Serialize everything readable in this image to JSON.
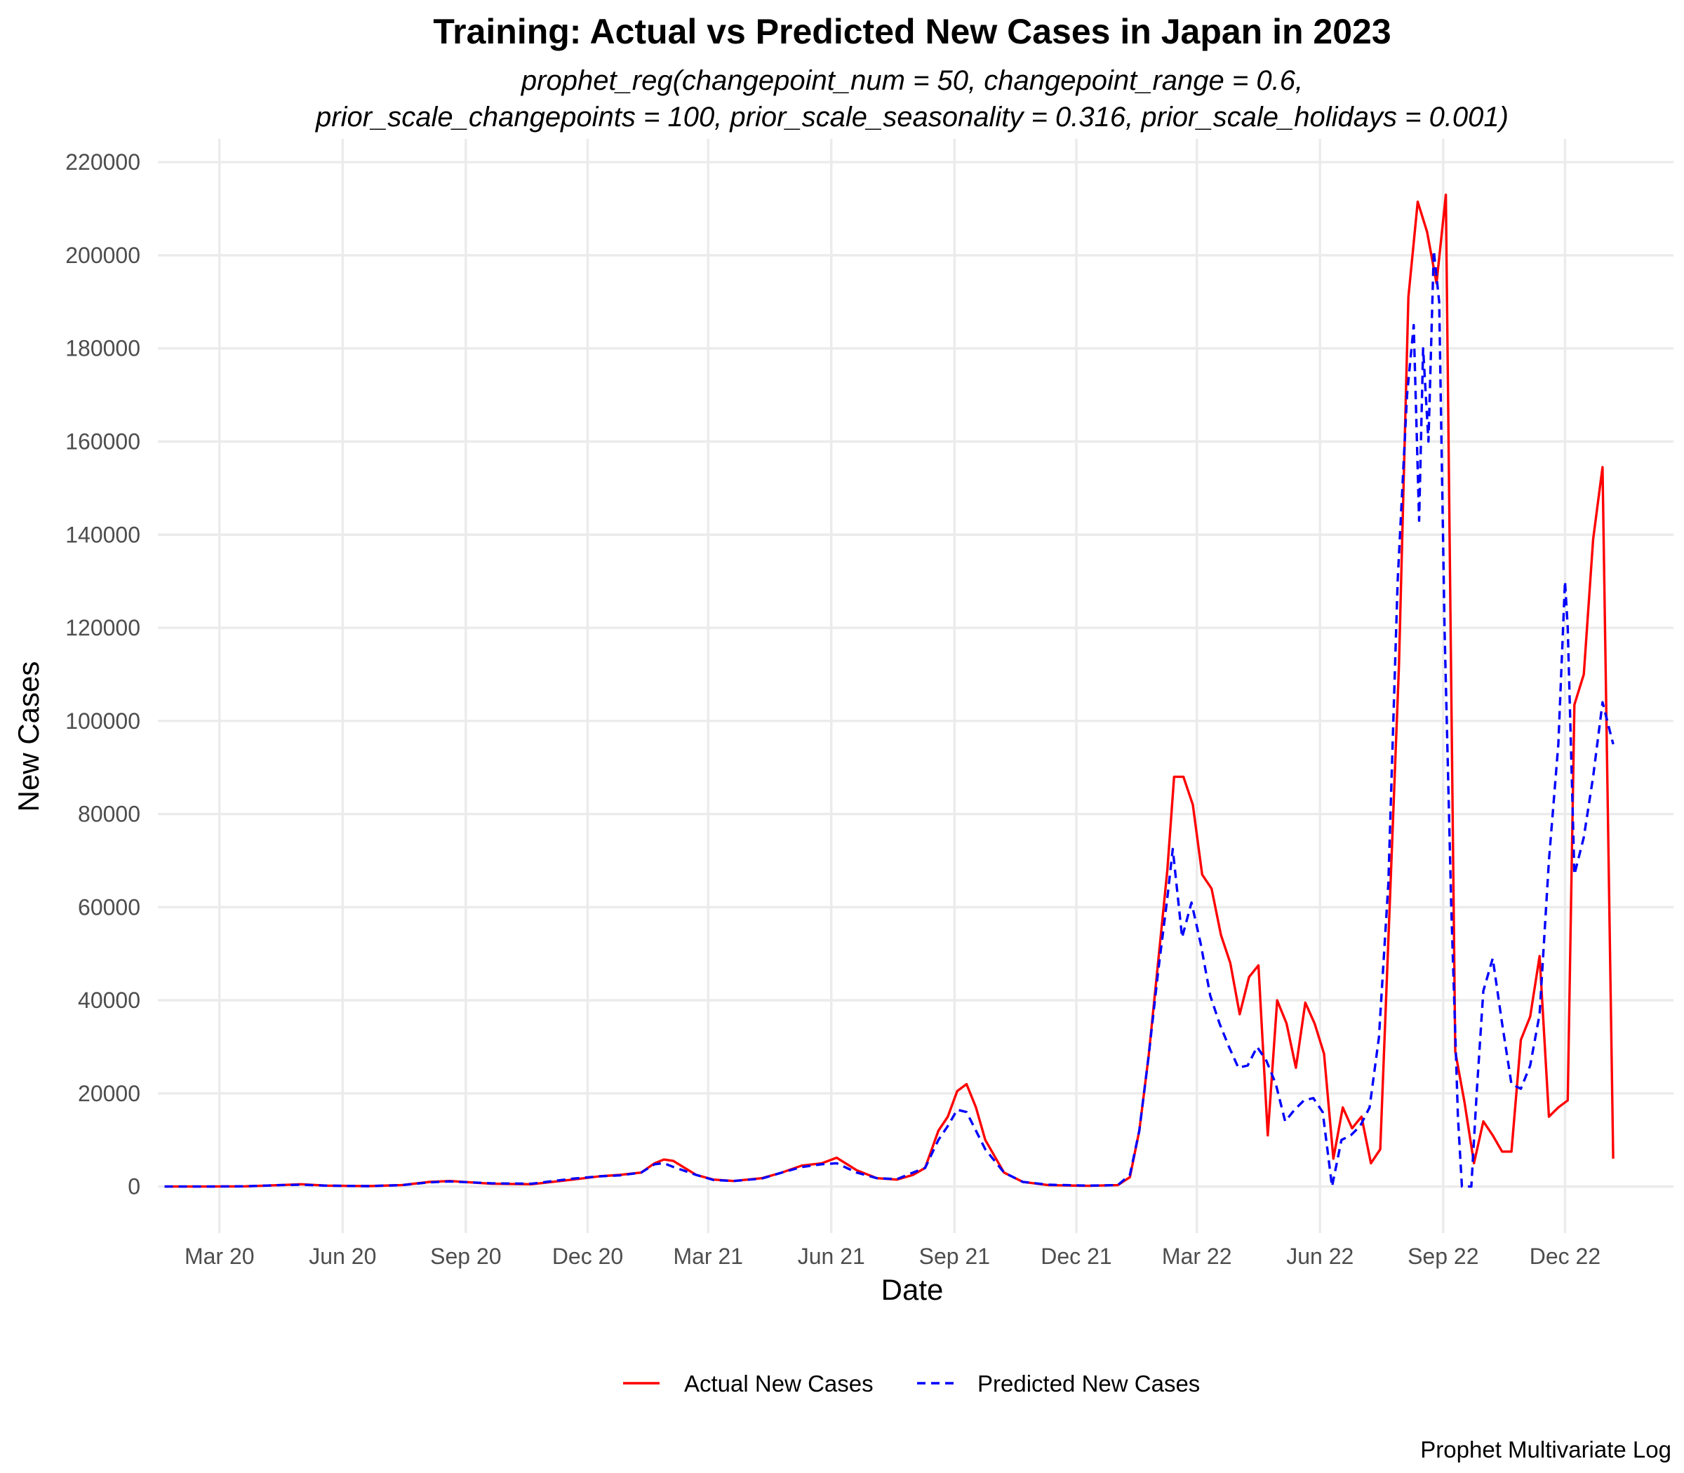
{
  "chart_data": {
    "type": "line",
    "title": "Training: Actual vs Predicted New Cases in Japan in 2023",
    "subtitle_lines": [
      "prophet_reg(changepoint_num = 50, changepoint_range = 0.6,",
      "prior_scale_changepoints = 100, prior_scale_seasonality = 0.316, prior_scale_holidays = 0.001)"
    ],
    "xlabel": "Date",
    "ylabel": "New Cases",
    "caption": "Prophet Multivariate Log",
    "x_ticks": [
      {
        "label": "Mar 20",
        "date": "2020-03-01"
      },
      {
        "label": "Jun 20",
        "date": "2020-06-01"
      },
      {
        "label": "Sep 20",
        "date": "2020-09-01"
      },
      {
        "label": "Dec 20",
        "date": "2020-12-01"
      },
      {
        "label": "Mar 21",
        "date": "2021-03-01"
      },
      {
        "label": "Jun 21",
        "date": "2021-06-01"
      },
      {
        "label": "Sep 21",
        "date": "2021-09-01"
      },
      {
        "label": "Dec 21",
        "date": "2021-12-01"
      },
      {
        "label": "Mar 22",
        "date": "2022-03-01"
      },
      {
        "label": "Jun 22",
        "date": "2022-06-01"
      },
      {
        "label": "Sep 22",
        "date": "2022-09-01"
      },
      {
        "label": "Dec 22",
        "date": "2022-12-01"
      }
    ],
    "y_ticks": [
      0,
      20000,
      40000,
      60000,
      80000,
      100000,
      120000,
      140000,
      160000,
      180000,
      200000,
      220000
    ],
    "ylim": [
      -10000,
      225000
    ],
    "xlim": [
      "2020-01-15",
      "2023-02-20"
    ],
    "grid": true,
    "legend_position": "bottom",
    "series": [
      {
        "name": "Actual New Cases",
        "color": "#ff0000",
        "dash": "solid",
        "points": [
          [
            "2020-01-20",
            0
          ],
          [
            "2020-02-20",
            0
          ],
          [
            "2020-03-20",
            50
          ],
          [
            "2020-04-15",
            300
          ],
          [
            "2020-05-01",
            500
          ],
          [
            "2020-05-20",
            200
          ],
          [
            "2020-06-20",
            100
          ],
          [
            "2020-07-15",
            300
          ],
          [
            "2020-08-05",
            1000
          ],
          [
            "2020-08-20",
            1200
          ],
          [
            "2020-09-20",
            600
          ],
          [
            "2020-10-20",
            500
          ],
          [
            "2020-11-20",
            1500
          ],
          [
            "2020-12-10",
            2200
          ],
          [
            "2020-12-25",
            2500
          ],
          [
            "2021-01-10",
            3000
          ],
          [
            "2021-01-20",
            5000
          ],
          [
            "2021-01-27",
            5800
          ],
          [
            "2021-02-03",
            5500
          ],
          [
            "2021-02-20",
            2500
          ],
          [
            "2021-03-05",
            1500
          ],
          [
            "2021-03-20",
            1200
          ],
          [
            "2021-04-10",
            1800
          ],
          [
            "2021-04-25",
            3000
          ],
          [
            "2021-05-10",
            4500
          ],
          [
            "2021-05-25",
            5000
          ],
          [
            "2021-06-05",
            6200
          ],
          [
            "2021-06-20",
            3500
          ],
          [
            "2021-07-05",
            1800
          ],
          [
            "2021-07-20",
            1500
          ],
          [
            "2021-08-01",
            2500
          ],
          [
            "2021-08-10",
            4000
          ],
          [
            "2021-08-20",
            12000
          ],
          [
            "2021-08-27",
            15000
          ],
          [
            "2021-09-03",
            20500
          ],
          [
            "2021-09-10",
            22000
          ],
          [
            "2021-09-17",
            17000
          ],
          [
            "2021-09-24",
            10000
          ],
          [
            "2021-10-08",
            3000
          ],
          [
            "2021-10-22",
            1000
          ],
          [
            "2021-11-10",
            300
          ],
          [
            "2021-12-10",
            150
          ],
          [
            "2022-01-01",
            300
          ],
          [
            "2022-01-10",
            2000
          ],
          [
            "2022-01-17",
            12000
          ],
          [
            "2022-01-24",
            28000
          ],
          [
            "2022-01-31",
            48000
          ],
          [
            "2022-02-07",
            68000
          ],
          [
            "2022-02-12",
            88000
          ],
          [
            "2022-02-19",
            88000
          ],
          [
            "2022-02-26",
            82000
          ],
          [
            "2022-03-05",
            67000
          ],
          [
            "2022-03-12",
            64000
          ],
          [
            "2022-03-19",
            54000
          ],
          [
            "2022-03-26",
            48000
          ],
          [
            "2022-04-02",
            37000
          ],
          [
            "2022-04-09",
            45000
          ],
          [
            "2022-04-16",
            47500
          ],
          [
            "2022-04-23",
            11000
          ],
          [
            "2022-04-30",
            40000
          ],
          [
            "2022-05-07",
            35000
          ],
          [
            "2022-05-14",
            25500
          ],
          [
            "2022-05-21",
            39500
          ],
          [
            "2022-05-28",
            35000
          ],
          [
            "2022-06-04",
            28500
          ],
          [
            "2022-06-11",
            6000
          ],
          [
            "2022-06-18",
            17000
          ],
          [
            "2022-06-25",
            12500
          ],
          [
            "2022-07-02",
            15000
          ],
          [
            "2022-07-09",
            5000
          ],
          [
            "2022-07-16",
            8000
          ],
          [
            "2022-07-23",
            60000
          ],
          [
            "2022-07-30",
            112000
          ],
          [
            "2022-08-06",
            191000
          ],
          [
            "2022-08-13",
            211500
          ],
          [
            "2022-08-20",
            205000
          ],
          [
            "2022-08-27",
            194000
          ],
          [
            "2022-09-03",
            213000
          ],
          [
            "2022-09-10",
            29000
          ],
          [
            "2022-09-17",
            18000
          ],
          [
            "2022-09-24",
            5000
          ],
          [
            "2022-10-01",
            14000
          ],
          [
            "2022-10-08",
            11000
          ],
          [
            "2022-10-15",
            7500
          ],
          [
            "2022-10-22",
            7500
          ],
          [
            "2022-10-29",
            31500
          ],
          [
            "2022-11-05",
            36500
          ],
          [
            "2022-11-12",
            49500
          ],
          [
            "2022-11-19",
            15000
          ],
          [
            "2022-11-26",
            17000
          ],
          [
            "2022-12-03",
            18500
          ],
          [
            "2022-12-08",
            103500
          ],
          [
            "2022-12-15",
            110000
          ],
          [
            "2022-12-22",
            139000
          ],
          [
            "2022-12-29",
            154500
          ],
          [
            "2023-01-06",
            6000
          ]
        ]
      },
      {
        "name": "Predicted New Cases",
        "color": "#0000ff",
        "dash": "dashed",
        "points": [
          [
            "2020-01-20",
            0
          ],
          [
            "2020-02-20",
            0
          ],
          [
            "2020-03-20",
            50
          ],
          [
            "2020-04-15",
            300
          ],
          [
            "2020-05-01",
            400
          ],
          [
            "2020-05-20",
            200
          ],
          [
            "2020-06-20",
            100
          ],
          [
            "2020-07-15",
            300
          ],
          [
            "2020-08-05",
            900
          ],
          [
            "2020-08-20",
            1100
          ],
          [
            "2020-09-20",
            700
          ],
          [
            "2020-10-20",
            600
          ],
          [
            "2020-11-20",
            1700
          ],
          [
            "2020-12-10",
            2200
          ],
          [
            "2020-12-25",
            2400
          ],
          [
            "2021-01-10",
            3000
          ],
          [
            "2021-01-20",
            4800
          ],
          [
            "2021-01-27",
            5000
          ],
          [
            "2021-02-03",
            4200
          ],
          [
            "2021-02-20",
            2500
          ],
          [
            "2021-03-05",
            1400
          ],
          [
            "2021-03-20",
            1200
          ],
          [
            "2021-04-10",
            1700
          ],
          [
            "2021-04-25",
            3000
          ],
          [
            "2021-05-10",
            4200
          ],
          [
            "2021-05-25",
            4800
          ],
          [
            "2021-06-05",
            5000
          ],
          [
            "2021-06-20",
            3000
          ],
          [
            "2021-07-05",
            1800
          ],
          [
            "2021-07-20",
            1600
          ],
          [
            "2021-08-01",
            3000
          ],
          [
            "2021-08-10",
            4000
          ],
          [
            "2021-08-20",
            10000
          ],
          [
            "2021-08-27",
            13000
          ],
          [
            "2021-09-03",
            16500
          ],
          [
            "2021-09-10",
            16000
          ],
          [
            "2021-09-17",
            12000
          ],
          [
            "2021-09-24",
            8000
          ],
          [
            "2021-10-08",
            3000
          ],
          [
            "2021-10-22",
            1000
          ],
          [
            "2021-11-10",
            400
          ],
          [
            "2021-12-10",
            200
          ],
          [
            "2022-01-01",
            300
          ],
          [
            "2022-01-10",
            2500
          ],
          [
            "2022-01-17",
            12000
          ],
          [
            "2022-01-24",
            28000
          ],
          [
            "2022-01-31",
            46000
          ],
          [
            "2022-02-07",
            62000
          ],
          [
            "2022-02-11",
            72500
          ],
          [
            "2022-02-18",
            53500
          ],
          [
            "2022-02-25",
            61000
          ],
          [
            "2022-03-04",
            52000
          ],
          [
            "2022-03-11",
            41000
          ],
          [
            "2022-03-18",
            35000
          ],
          [
            "2022-03-25",
            30000
          ],
          [
            "2022-04-01",
            25500
          ],
          [
            "2022-04-08",
            26000
          ],
          [
            "2022-04-15",
            30000
          ],
          [
            "2022-04-22",
            27000
          ],
          [
            "2022-04-29",
            22000
          ],
          [
            "2022-05-06",
            14000
          ],
          [
            "2022-05-13",
            16500
          ],
          [
            "2022-05-20",
            18500
          ],
          [
            "2022-05-27",
            19000
          ],
          [
            "2022-06-03",
            16000
          ],
          [
            "2022-06-10",
            0
          ],
          [
            "2022-06-17",
            10000
          ],
          [
            "2022-06-24",
            11000
          ],
          [
            "2022-07-01",
            13000
          ],
          [
            "2022-07-08",
            17000
          ],
          [
            "2022-07-15",
            32000
          ],
          [
            "2022-07-22",
            65000
          ],
          [
            "2022-07-29",
            130000
          ],
          [
            "2022-08-05",
            170000
          ],
          [
            "2022-08-10",
            185000
          ],
          [
            "2022-08-14",
            143000
          ],
          [
            "2022-08-17",
            180000
          ],
          [
            "2022-08-21",
            160000
          ],
          [
            "2022-08-25",
            201000
          ],
          [
            "2022-08-29",
            190000
          ],
          [
            "2022-09-02",
            120000
          ],
          [
            "2022-09-07",
            60000
          ],
          [
            "2022-09-12",
            15000
          ],
          [
            "2022-09-15",
            0
          ],
          [
            "2022-09-22",
            0
          ],
          [
            "2022-09-26",
            20000
          ],
          [
            "2022-10-01",
            42000
          ],
          [
            "2022-10-08",
            49000
          ],
          [
            "2022-10-15",
            35000
          ],
          [
            "2022-10-22",
            22000
          ],
          [
            "2022-10-29",
            21000
          ],
          [
            "2022-11-05",
            26000
          ],
          [
            "2022-11-12",
            37000
          ],
          [
            "2022-11-19",
            70000
          ],
          [
            "2022-11-26",
            95000
          ],
          [
            "2022-12-01",
            130000
          ],
          [
            "2022-12-03",
            120000
          ],
          [
            "2022-12-08",
            67000
          ],
          [
            "2022-12-15",
            75000
          ],
          [
            "2022-12-22",
            88000
          ],
          [
            "2022-12-29",
            104000
          ],
          [
            "2023-01-06",
            95000
          ]
        ]
      }
    ]
  }
}
